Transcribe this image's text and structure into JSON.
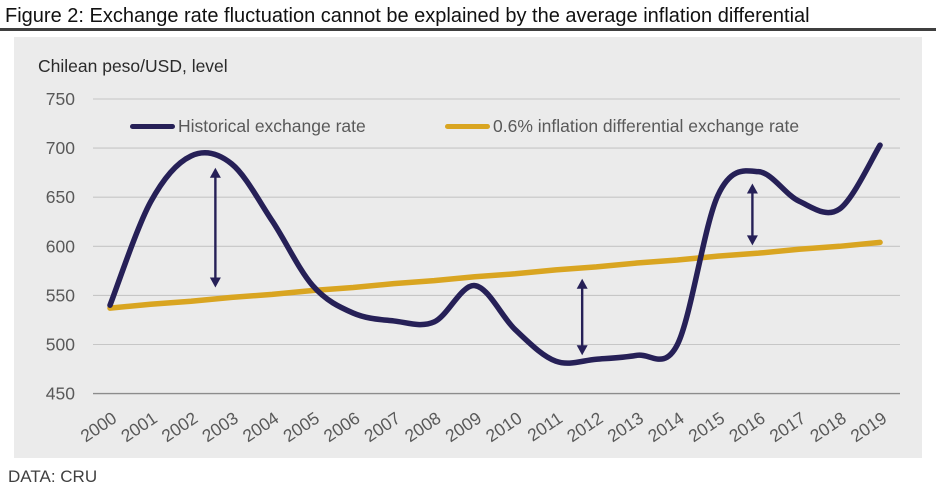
{
  "figure": {
    "title": "Figure 2: Exchange rate fluctuation cannot be explained by the average inflation differential",
    "subtitle": "Chilean peso/USD, level",
    "source": "DATA: CRU"
  },
  "legend": [
    {
      "label": "Historical exchange rate",
      "color": "#262057"
    },
    {
      "label": "0.6% inflation differential exchange rate",
      "color": "#d9a521"
    }
  ],
  "colors": {
    "panel_background": "#ebebeb",
    "gridline": "#c6c6c6",
    "axis_line": "#8c8c8c",
    "tick_text": "#595959",
    "title_text": "#111111",
    "title_rule": "#3f3f3f",
    "historical_line": "#262057",
    "differential_line": "#d9a521",
    "arrow": "#262057"
  },
  "chart_data": {
    "type": "line",
    "title": "Chilean peso/USD, level",
    "xlabel": "",
    "ylabel": "",
    "categories": [
      "2000",
      "2001",
      "2002",
      "2003",
      "2004",
      "2005",
      "2006",
      "2007",
      "2008",
      "2009",
      "2010",
      "2011",
      "2012",
      "2013",
      "2014",
      "2015",
      "2016",
      "2017",
      "2018",
      "2019"
    ],
    "series": [
      {
        "name": "Historical exchange rate",
        "color": "#262057",
        "smooth": true,
        "values": [
          540,
          645,
          692,
          684,
          626,
          560,
          532,
          524,
          523,
          560,
          515,
          483,
          485,
          489,
          500,
          652,
          676,
          646,
          638,
          703
        ]
      },
      {
        "name": "0.6% inflation differential exchange rate",
        "color": "#d9a521",
        "smooth": false,
        "values": [
          537,
          541,
          544,
          548,
          551,
          555,
          558,
          562,
          565,
          569,
          572,
          576,
          579,
          583,
          586,
          590,
          593,
          597,
          600,
          604
        ]
      }
    ],
    "ylim": [
      450,
      750
    ],
    "yticks": [
      450,
      500,
      550,
      600,
      650,
      700,
      750
    ],
    "grid": "horizontal",
    "legend_position": "top-inside",
    "annotations": {
      "double_arrows": [
        {
          "x_year": 2002.6,
          "top": 680,
          "bottom": 558
        },
        {
          "x_year": 2011.65,
          "top": 567,
          "bottom": 489
        },
        {
          "x_year": 2015.85,
          "top": 664,
          "bottom": 601
        }
      ]
    }
  }
}
